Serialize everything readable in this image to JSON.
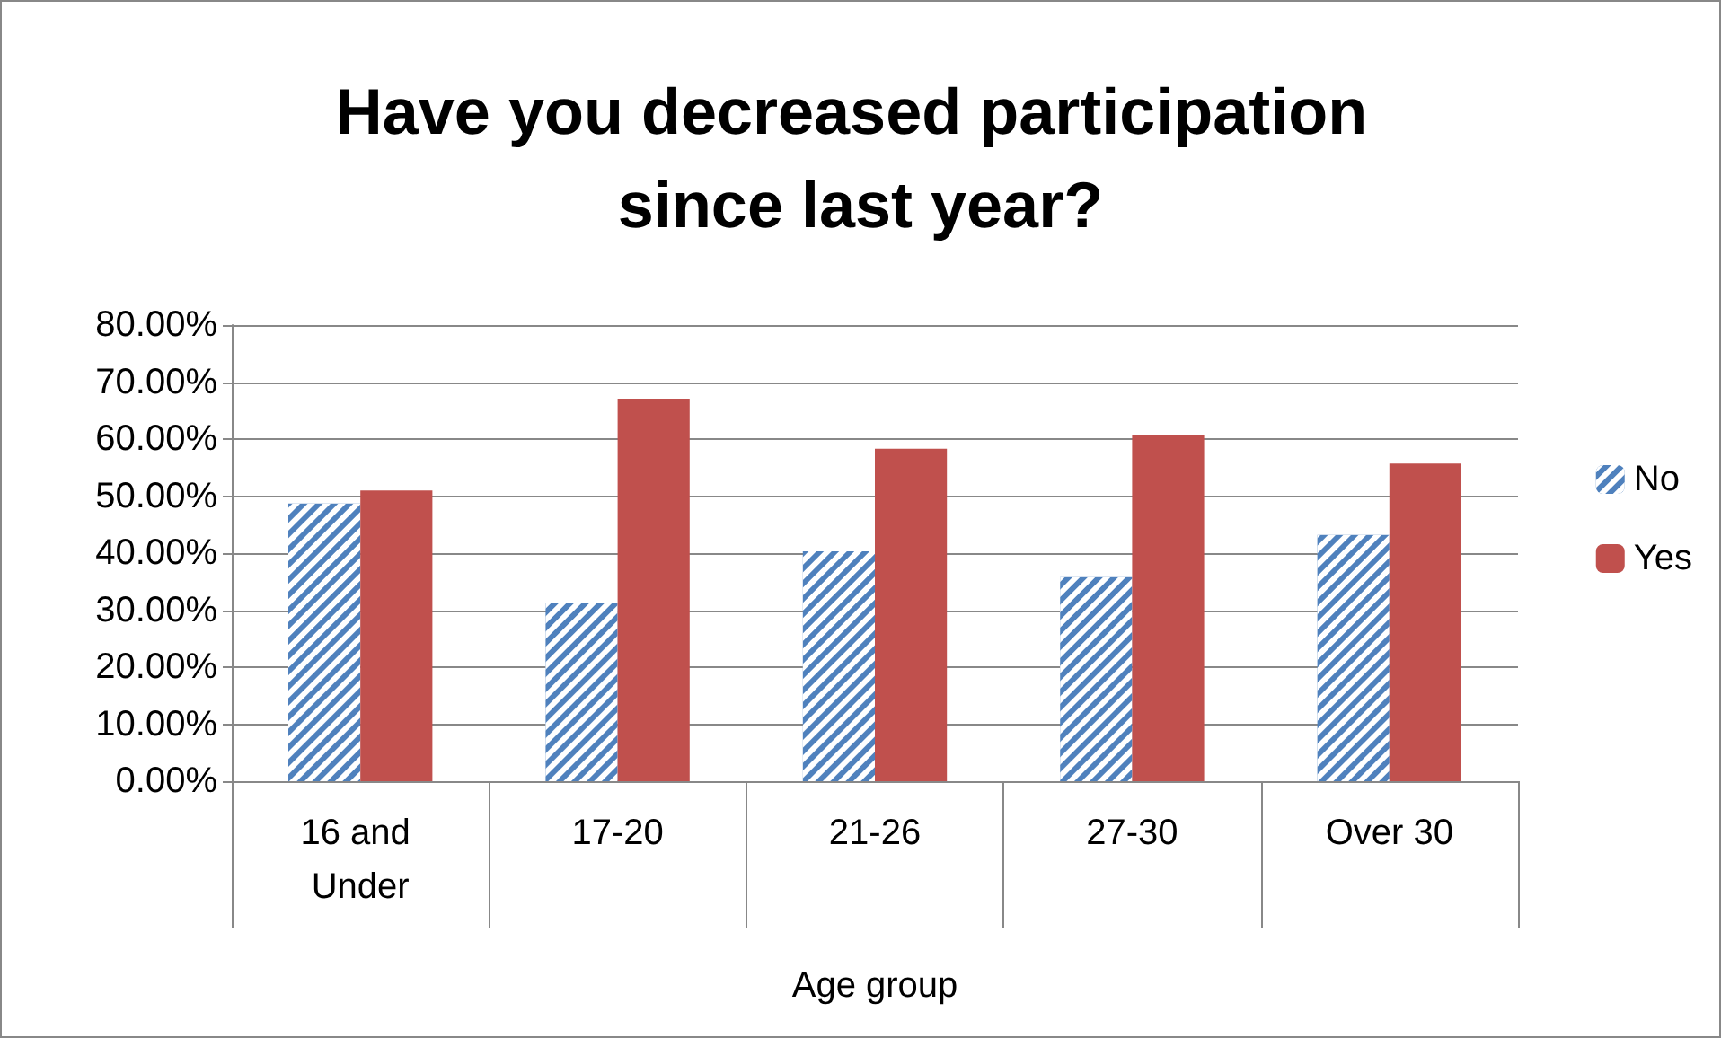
{
  "chart_data": {
    "type": "bar",
    "title": "Have you decreased participation since last year?",
    "xlabel": "Age group",
    "categories": [
      "16 and Under",
      "17-20",
      "21-26",
      "27-30",
      "Over 30"
    ],
    "series": [
      {
        "name": "No",
        "color": "#4f81bd",
        "values": [
          48.7,
          31.2,
          40.3,
          35.8,
          43.2
        ]
      },
      {
        "name": "Yes",
        "color": "#c0504d",
        "values": [
          51.0,
          67.1,
          58.3,
          60.7,
          55.7
        ]
      }
    ],
    "ylim": [
      0,
      80
    ],
    "yticks": [
      {
        "value": 0,
        "label": "0.00%"
      },
      {
        "value": 10,
        "label": "10.00%"
      },
      {
        "value": 20,
        "label": "20.00%"
      },
      {
        "value": 30,
        "label": "30.00%"
      },
      {
        "value": 40,
        "label": "40.00%"
      },
      {
        "value": 50,
        "label": "50.00%"
      },
      {
        "value": 60,
        "label": "60.00%"
      },
      {
        "value": 70,
        "label": "70.00%"
      },
      {
        "value": 80,
        "label": "80.00%"
      }
    ],
    "grid": "y",
    "legend": "right"
  }
}
